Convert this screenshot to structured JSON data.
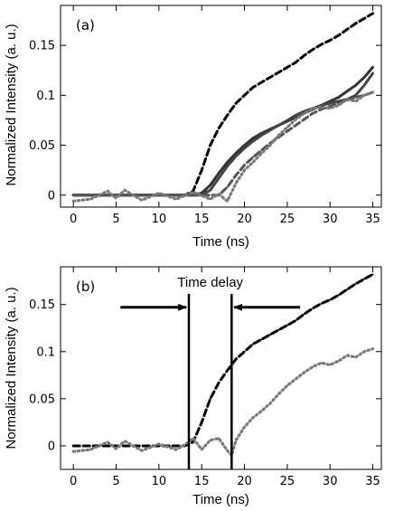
{
  "chart_data": [
    {
      "type": "line",
      "panel_label": "(a)",
      "xlabel": "Time  (ns)",
      "ylabel": "Normalized Intensity  (a. u.)",
      "xlim": [
        -1.5,
        36
      ],
      "ylim": [
        -0.012,
        0.19
      ],
      "xticks": [
        0,
        5,
        10,
        15,
        20,
        25,
        30,
        35
      ],
      "yticks": [
        0,
        0.05,
        0.1,
        0.15
      ],
      "xtick_labels": [
        "0",
        "5",
        "10",
        "15",
        "20",
        "25",
        "30",
        "35"
      ],
      "ytick_labels": [
        "0",
        "0.05",
        "0.1",
        "0.15"
      ],
      "series": [
        {
          "style": "dashed",
          "color": "#000000",
          "x": [
            0,
            5,
            10,
            13,
            14,
            15,
            16,
            17,
            18,
            19,
            20,
            21,
            22,
            23,
            24,
            25,
            26,
            27,
            28,
            29,
            30,
            31,
            32,
            33,
            34,
            35
          ],
          "y": [
            0,
            0,
            0,
            0,
            0.004,
            0.025,
            0.05,
            0.067,
            0.08,
            0.092,
            0.1,
            0.108,
            0.113,
            0.118,
            0.123,
            0.128,
            0.133,
            0.14,
            0.146,
            0.151,
            0.155,
            0.16,
            0.166,
            0.172,
            0.177,
            0.182
          ]
        },
        {
          "style": "solid",
          "color": "#333333",
          "x": [
            0,
            5,
            10,
            14,
            15,
            16,
            17,
            18,
            19,
            20,
            21,
            22,
            23,
            24,
            25,
            26,
            27,
            28,
            29,
            30,
            31,
            32,
            33,
            34,
            35
          ],
          "y": [
            0,
            0,
            0,
            0,
            0.002,
            0.01,
            0.022,
            0.033,
            0.042,
            0.05,
            0.057,
            0.062,
            0.066,
            0.07,
            0.074,
            0.078,
            0.082,
            0.086,
            0.09,
            0.094,
            0.098,
            0.104,
            0.11,
            0.118,
            0.128
          ]
        },
        {
          "style": "solid",
          "color": "#444444",
          "x": [
            0,
            5,
            10,
            15,
            16,
            17,
            18,
            19,
            20,
            21,
            22,
            23,
            24,
            25,
            26,
            27,
            28,
            29,
            30,
            31,
            32,
            33,
            34,
            35
          ],
          "y": [
            0,
            0,
            0,
            0,
            0.005,
            0.017,
            0.029,
            0.039,
            0.047,
            0.054,
            0.06,
            0.065,
            0.07,
            0.075,
            0.08,
            0.084,
            0.087,
            0.09,
            0.092,
            0.094,
            0.096,
            0.1,
            0.11,
            0.122
          ]
        },
        {
          "style": "dashed",
          "color": "#555555",
          "x": [
            0,
            5,
            10,
            15,
            17,
            18,
            19,
            20,
            21,
            22,
            23,
            24,
            25,
            26,
            27,
            28,
            29,
            30,
            31,
            32,
            33,
            34,
            35
          ],
          "y": [
            0,
            0,
            0,
            0,
            0,
            0.008,
            0.02,
            0.03,
            0.038,
            0.045,
            0.052,
            0.058,
            0.064,
            0.07,
            0.076,
            0.082,
            0.086,
            0.089,
            0.092,
            0.095,
            0.098,
            0.1,
            0.103
          ]
        },
        {
          "style": "dotted",
          "color": "#7a7a7a",
          "x": [
            0,
            2,
            4,
            5,
            6,
            8,
            10,
            12,
            14,
            16,
            17,
            18,
            19,
            20,
            21,
            22,
            23,
            24,
            25,
            26,
            27,
            28,
            29,
            30,
            31,
            32,
            33,
            34,
            35
          ],
          "y": [
            -0.006,
            -0.004,
            0.004,
            -0.003,
            0.005,
            -0.005,
            0.002,
            -0.004,
            0.003,
            -0.004,
            0.001,
            -0.006,
            0.012,
            0.025,
            0.033,
            0.042,
            0.05,
            0.06,
            0.068,
            0.076,
            0.082,
            0.087,
            0.088,
            0.087,
            0.09,
            0.096,
            0.094,
            0.1,
            0.103
          ]
        }
      ]
    },
    {
      "type": "line",
      "panel_label": "(b)",
      "xlabel": "Time  (ns)",
      "ylabel": "Normalized Intensity  (a. u.)",
      "xlim": [
        -1.5,
        36
      ],
      "ylim": [
        -0.025,
        0.19
      ],
      "xticks": [
        0,
        5,
        10,
        15,
        20,
        25,
        30,
        35
      ],
      "yticks": [
        0,
        0.05,
        0.1,
        0.15
      ],
      "xtick_labels": [
        "0",
        "5",
        "10",
        "15",
        "20",
        "25",
        "30",
        "35"
      ],
      "ytick_labels": [
        "0",
        "0.05",
        "0.1",
        "0.15"
      ],
      "annotation": "Time  delay",
      "vlines": [
        13.5,
        18.5
      ],
      "arrows": [
        {
          "from_x": 5.5,
          "to_x": 13.2,
          "y": 0.147
        },
        {
          "from_x": 26.5,
          "to_x": 18.8,
          "y": 0.147
        }
      ],
      "series": [
        {
          "style": "dashed",
          "color": "#000000",
          "x": [
            0,
            5,
            10,
            13,
            14,
            15,
            16,
            17,
            18,
            19,
            20,
            21,
            22,
            23,
            24,
            25,
            26,
            27,
            28,
            29,
            30,
            31,
            32,
            33,
            34,
            35
          ],
          "y": [
            0,
            0,
            0,
            0,
            0.004,
            0.025,
            0.05,
            0.067,
            0.08,
            0.092,
            0.1,
            0.108,
            0.113,
            0.118,
            0.123,
            0.128,
            0.133,
            0.14,
            0.146,
            0.151,
            0.155,
            0.16,
            0.166,
            0.172,
            0.177,
            0.182
          ]
        },
        {
          "style": "dotted",
          "color": "#7a7a7a",
          "x": [
            0,
            2,
            4,
            5,
            6,
            8,
            10,
            12,
            13,
            14,
            15,
            16,
            17,
            18,
            18.5,
            19,
            20,
            21,
            22,
            23,
            24,
            25,
            26,
            27,
            28,
            29,
            30,
            31,
            32,
            33,
            34,
            35
          ],
          "y": [
            -0.006,
            -0.004,
            0.004,
            -0.003,
            0.005,
            -0.005,
            0.002,
            -0.004,
            0.001,
            0.008,
            -0.004,
            0.006,
            0.008,
            -0.005,
            -0.01,
            0.006,
            0.02,
            0.03,
            0.037,
            0.045,
            0.055,
            0.064,
            0.071,
            0.078,
            0.084,
            0.088,
            0.086,
            0.09,
            0.096,
            0.094,
            0.1,
            0.103
          ]
        }
      ]
    }
  ]
}
